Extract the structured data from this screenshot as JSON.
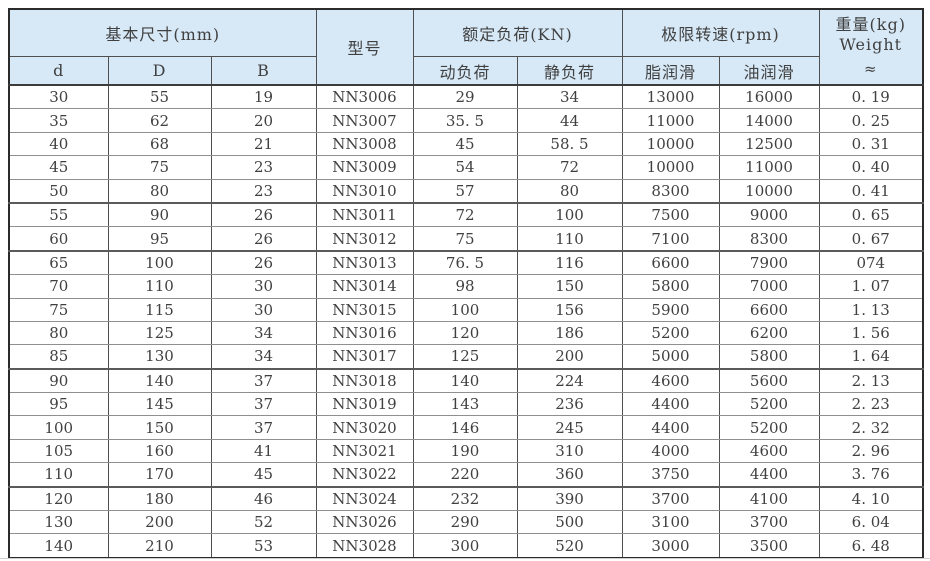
{
  "table": {
    "header": {
      "basic_dimensions": "基本尺寸(mm)",
      "col_d": "d",
      "col_D": "D",
      "col_B": "B",
      "model": "型号",
      "rated_load": "额定负荷(KN)",
      "dynamic_load": "动负荷",
      "static_load": "静负荷",
      "limit_speed": "极限转速(rpm)",
      "grease_lubrication": "脂润滑",
      "oil_lubrication": "油润滑",
      "weight_line1": "重量(kg)",
      "weight_line2": "Weight",
      "weight_approx": "≈"
    },
    "columns_semantic": [
      "d",
      "D",
      "B",
      "model",
      "dynamic-load",
      "static-load",
      "grease-speed",
      "oil-speed",
      "weight"
    ],
    "rows": [
      [
        "30",
        "55",
        "19",
        "NN3006",
        "29",
        "34",
        "13000",
        "16000",
        "0. 19"
      ],
      [
        "35",
        "62",
        "20",
        "NN3007",
        "35. 5",
        "44",
        "11000",
        "14000",
        "0. 25"
      ],
      [
        "40",
        "68",
        "21",
        "NN3008",
        "45",
        "58. 5",
        "10000",
        "12500",
        "0. 31"
      ],
      [
        "45",
        "75",
        "23",
        "NN3009",
        "54",
        "72",
        "10000",
        "11000",
        "0. 40"
      ],
      [
        "50",
        "80",
        "23",
        "NN3010",
        "57",
        "80",
        "8300",
        "10000",
        "0. 41"
      ],
      [
        "55",
        "90",
        "26",
        "NN3011",
        "72",
        "100",
        "7500",
        "9000",
        "0. 65"
      ],
      [
        "60",
        "95",
        "26",
        "NN3012",
        "75",
        "110",
        "7100",
        "8300",
        "0. 67"
      ],
      [
        "65",
        "100",
        "26",
        "NN3013",
        "76. 5",
        "116",
        "6600",
        "7900",
        "074"
      ],
      [
        "70",
        "110",
        "30",
        "NN3014",
        "98",
        "150",
        "5800",
        "7000",
        "1. 07"
      ],
      [
        "75",
        "115",
        "30",
        "NN3015",
        "100",
        "156",
        "5900",
        "6600",
        "1. 13"
      ],
      [
        "80",
        "125",
        "34",
        "NN3016",
        "120",
        "186",
        "5200",
        "6200",
        "1. 56"
      ],
      [
        "85",
        "130",
        "34",
        "NN3017",
        "125",
        "200",
        "5000",
        "5800",
        "1. 64"
      ],
      [
        "90",
        "140",
        "37",
        "NN3018",
        "140",
        "224",
        "4600",
        "5600",
        "2. 13"
      ],
      [
        "95",
        "145",
        "37",
        "NN3019",
        "143",
        "236",
        "4400",
        "5200",
        "2. 23"
      ],
      [
        "100",
        "150",
        "37",
        "NN3020",
        "146",
        "245",
        "4400",
        "5200",
        "2. 32"
      ],
      [
        "105",
        "160",
        "41",
        "NN3021",
        "190",
        "310",
        "4000",
        "4600",
        "2. 96"
      ],
      [
        "110",
        "170",
        "45",
        "NN3022",
        "220",
        "360",
        "3750",
        "4400",
        "3. 76"
      ],
      [
        "120",
        "180",
        "46",
        "NN3024",
        "232",
        "390",
        "3700",
        "4100",
        "4. 10"
      ],
      [
        "130",
        "200",
        "52",
        "NN3026",
        "290",
        "500",
        "3100",
        "3700",
        "6. 04"
      ],
      [
        "140",
        "210",
        "53",
        "NN3028",
        "300",
        "520",
        "3000",
        "3500",
        "6. 48"
      ]
    ],
    "thick_border_after_rows": [
      5,
      7,
      12,
      17
    ],
    "colors": {
      "header_bg": "#d7e9f7",
      "outer_border": "#2b2b2b",
      "inner_vertical_border": "#4f4f4f",
      "inner_horizontal_border": "#8f8f8f",
      "text": "#404040"
    }
  }
}
